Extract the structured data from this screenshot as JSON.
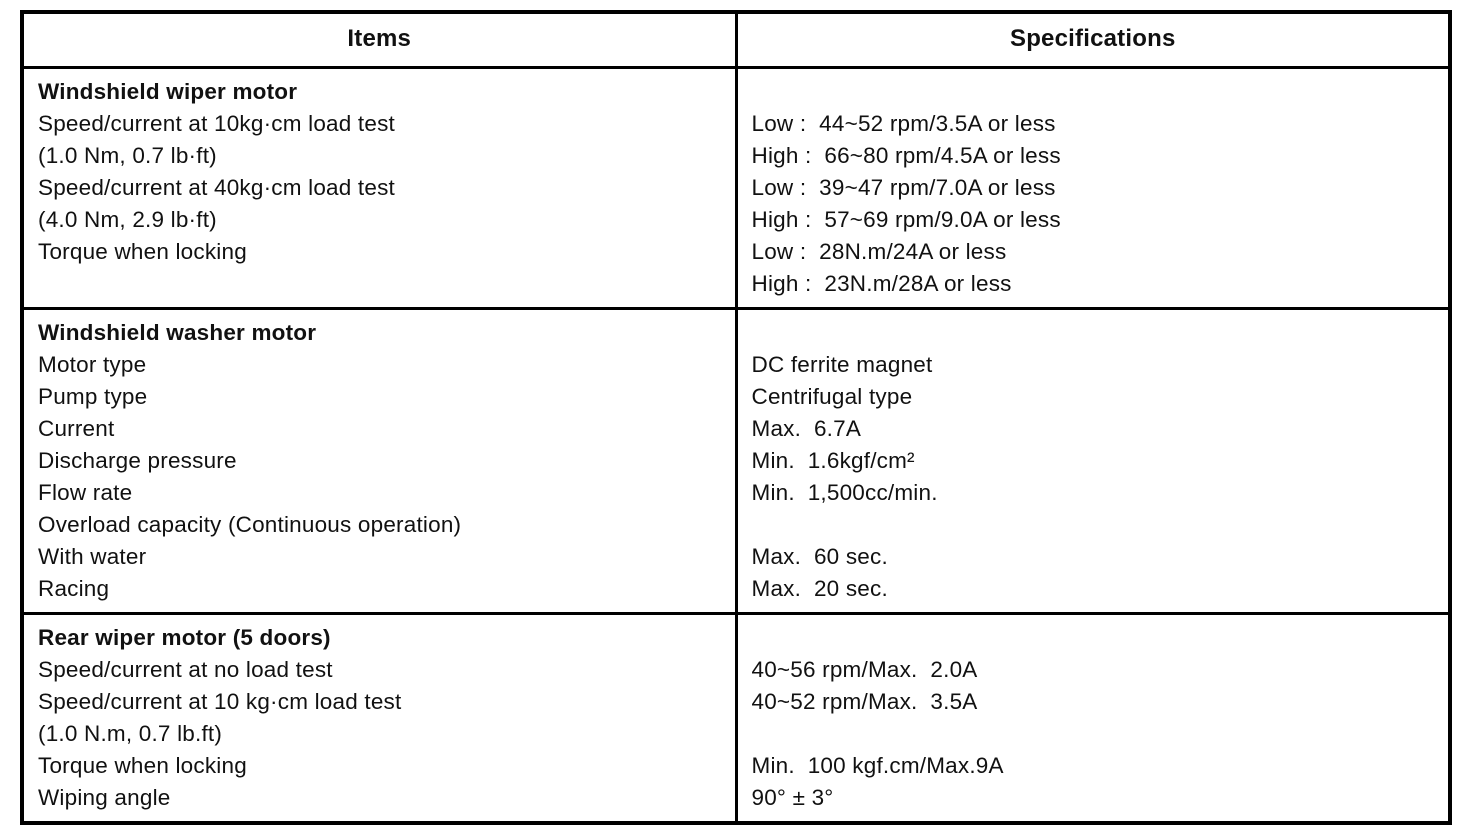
{
  "page": {
    "title": "Wiper and washer motor specifications table"
  },
  "table": {
    "column_headers": [
      "Items",
      "Specifications"
    ],
    "sections": [
      {
        "title": "Windshield wiper motor",
        "item_lines": [
          "Speed/current at 10kg·cm load test",
          "(1.0 Nm, 0.7 lb·ft)",
          "Speed/current at 40kg·cm load test",
          "(4.0 Nm, 2.9 lb·ft)",
          "Torque when locking"
        ],
        "spec_lines": [
          "",
          "Low :  44~52 rpm/3.5A or less",
          "High :  66~80 rpm/4.5A or less",
          "Low :  39~47 rpm/7.0A or less",
          "High :  57~69 rpm/9.0A or less",
          "Low :  28N.m/24A or less",
          "High :  23N.m/28A or less"
        ]
      },
      {
        "title": "Windshield washer motor",
        "item_lines": [
          "Motor type",
          "Pump type",
          "Current",
          "Discharge pressure",
          "Flow rate",
          "Overload capacity (Continuous operation)",
          "With water",
          "Racing"
        ],
        "spec_lines": [
          "",
          "DC ferrite magnet",
          "Centrifugal type",
          "Max.  6.7A",
          "Min.  1.6kgf/cm²",
          "Min.  1,500cc/min.",
          "",
          "Max.  60 sec.",
          "Max.  20 sec."
        ]
      },
      {
        "title": "Rear wiper motor (5 doors)",
        "item_lines": [
          "Speed/current at no load test",
          "Speed/current at 10 kg·cm load test",
          "(1.0 N.m, 0.7 lb.ft)",
          "Torque when locking",
          "Wiping angle"
        ],
        "spec_lines": [
          "",
          "40~56 rpm/Max.  2.0A",
          "40~52 rpm/Max.  3.5A",
          "",
          "Min.  100 kgf.cm/Max.9A",
          "90° ± 3°"
        ]
      }
    ]
  },
  "colors": {
    "ink": "#111111",
    "paper": "#ffffff",
    "border": "#000000"
  }
}
